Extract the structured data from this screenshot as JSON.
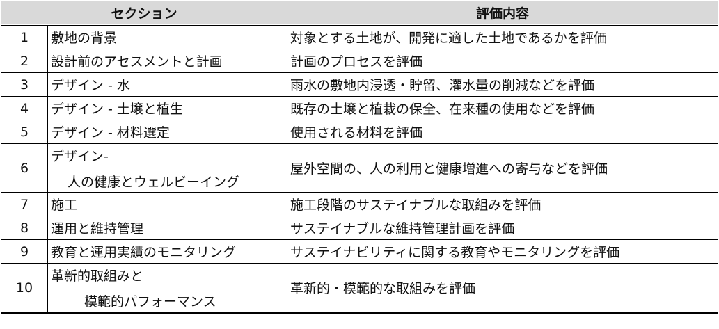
{
  "header": {
    "section": "セクション",
    "evaluation": "評価内容"
  },
  "rows": [
    {
      "no": "1",
      "section": "敷地の背景",
      "section2": "",
      "evaluation": "対象とする土地が、開発に適した土地であるかを評価"
    },
    {
      "no": "2",
      "section": "設計前のアセスメントと計画",
      "section2": "",
      "evaluation": "計画のプロセスを評価"
    },
    {
      "no": "3",
      "section": "デザイン - 水",
      "section2": "",
      "evaluation": "雨水の敷地内浸透・貯留、灌水量の削減などを評価"
    },
    {
      "no": "4",
      "section": "デザイン - 土壌と植生",
      "section2": "",
      "evaluation": "既存の土壌と植栽の保全、在来種の使用などを評価"
    },
    {
      "no": "5",
      "section": "デザイン - 材料選定",
      "section2": "",
      "evaluation": "使用される材料を評価"
    },
    {
      "no": "6",
      "section": "デザイン-",
      "section2": "人の健康とウェルビーイング",
      "evaluation": "屋外空間の、人の利用と健康増進への寄与などを評価"
    },
    {
      "no": "7",
      "section": "施工",
      "section2": "",
      "evaluation": "施工段階のサステイナブルな取組みを評価"
    },
    {
      "no": "8",
      "section": "運用と維持管理",
      "section2": "",
      "evaluation": "サステイナブルな維持管理計画を評価"
    },
    {
      "no": "9",
      "section": "教育と運用実績のモニタリング",
      "section2": "",
      "evaluation": "サステイナビリティに関する教育やモニタリングを評価"
    },
    {
      "no": "10",
      "section": "革新的取組みと",
      "section2": "模範的パフォーマンス",
      "evaluation": "革新的・模範的な取組みを評価"
    }
  ]
}
